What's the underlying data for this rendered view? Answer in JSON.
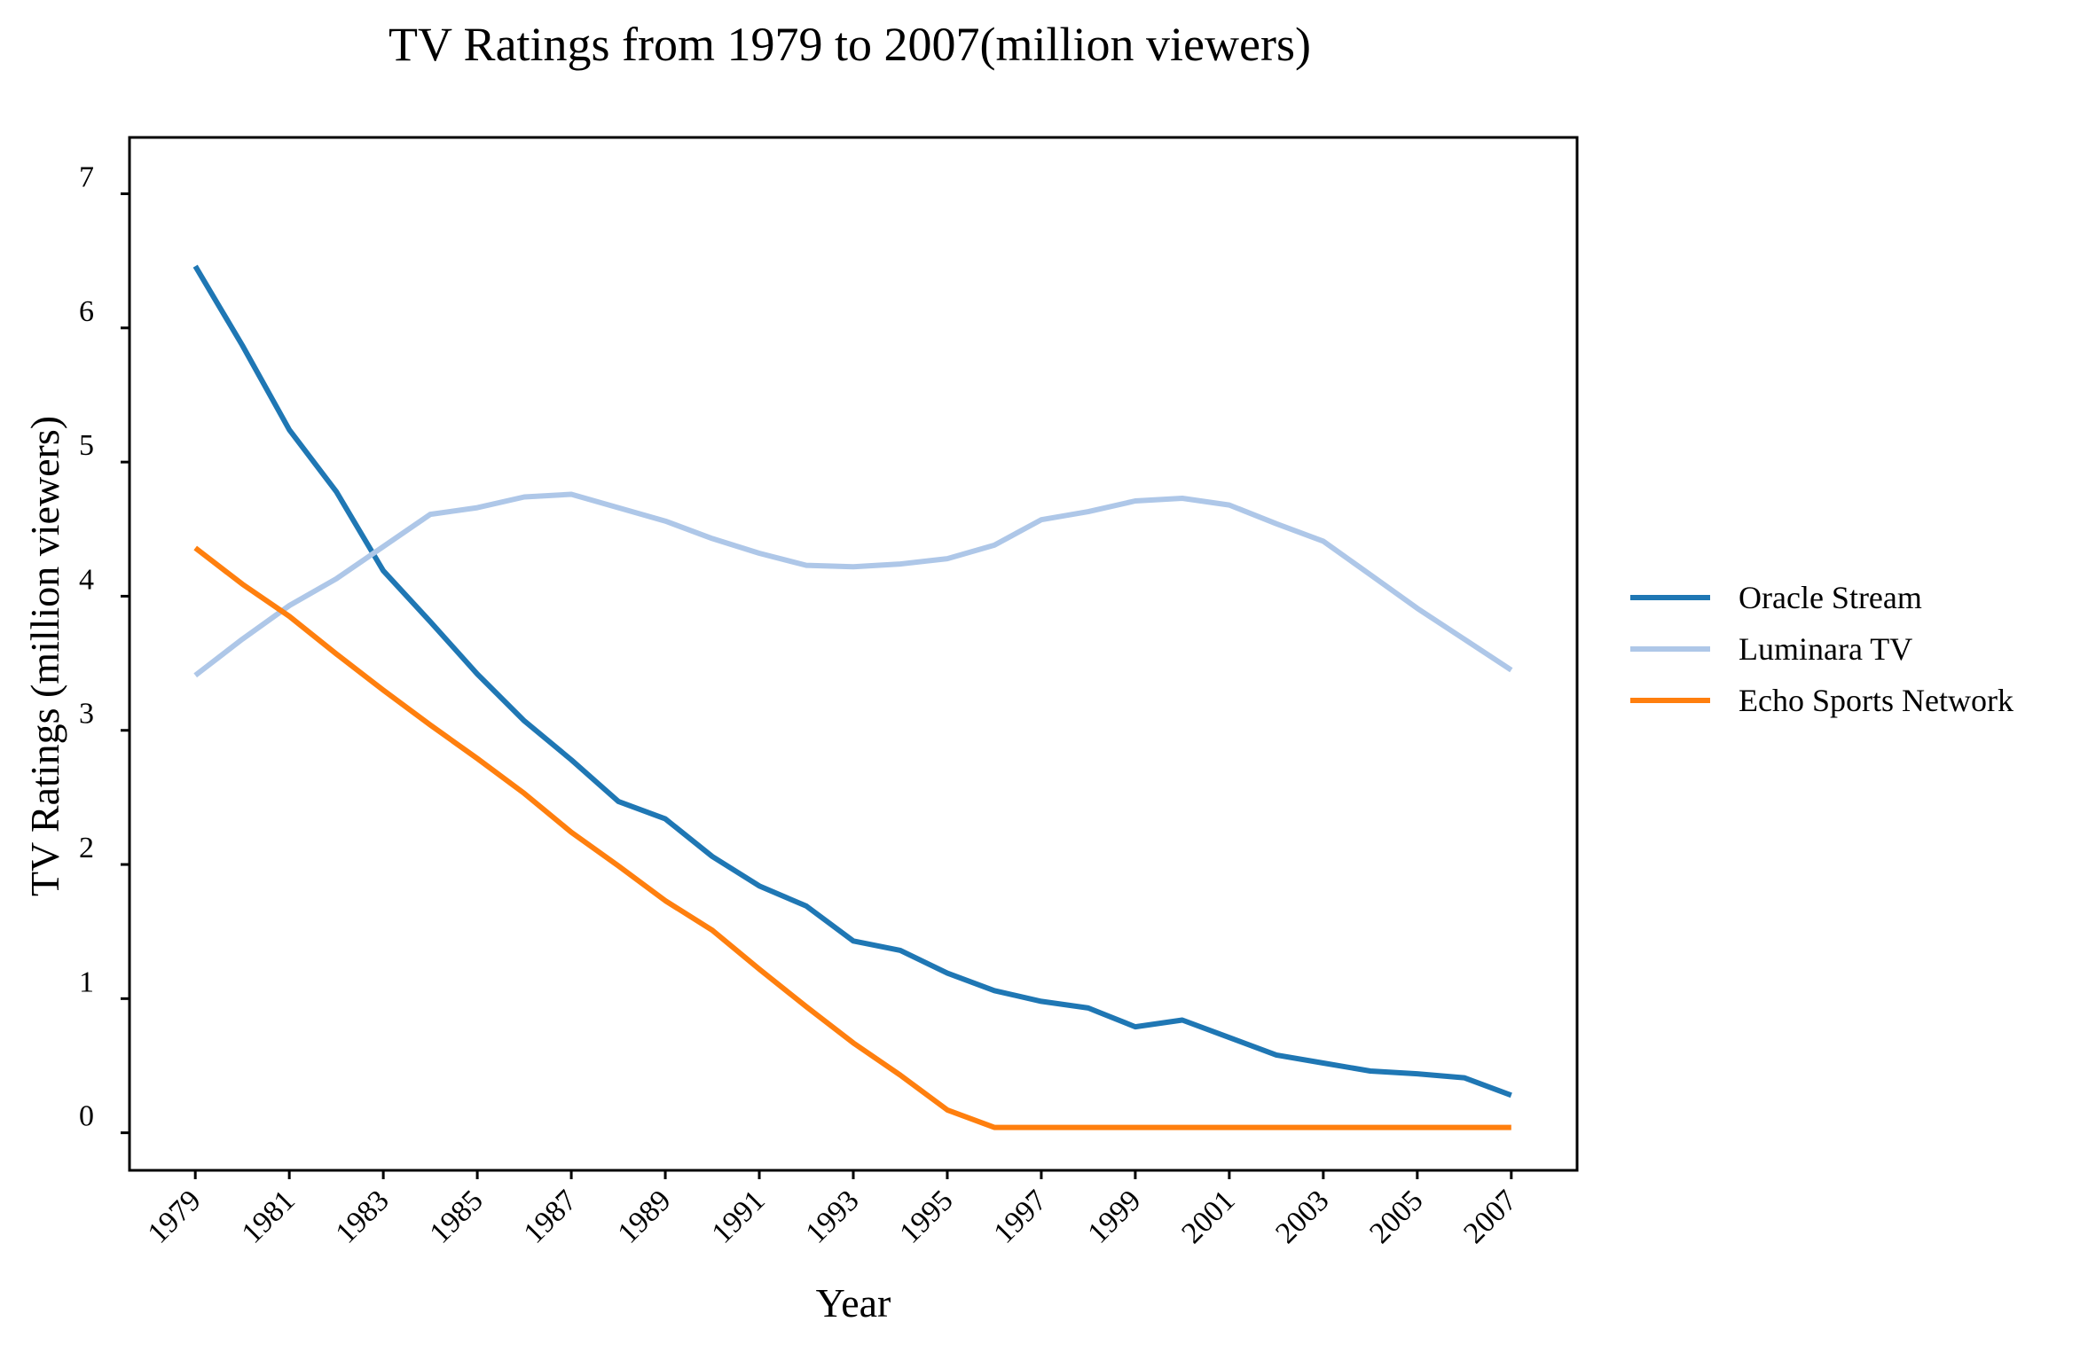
{
  "chart_data": {
    "type": "line",
    "title": "TV Ratings from 1979 to 2007(million viewers)",
    "xlabel": "Year",
    "ylabel": "TV Ratings (million viewers)",
    "x": [
      1979,
      1980,
      1981,
      1982,
      1983,
      1984,
      1985,
      1986,
      1987,
      1988,
      1989,
      1990,
      1991,
      1992,
      1993,
      1994,
      1995,
      1996,
      1997,
      1998,
      1999,
      2000,
      2001,
      2002,
      2003,
      2004,
      2005,
      2006,
      2007
    ],
    "x_ticks": [
      "1979",
      "1981",
      "1983",
      "1985",
      "1987",
      "1989",
      "1991",
      "1993",
      "1995",
      "1997",
      "1999",
      "2001",
      "2003",
      "2005",
      "2007"
    ],
    "y_ticks": [
      "0",
      "1",
      "2",
      "3",
      "4",
      "5",
      "6",
      "7"
    ],
    "xlim": [
      1977.6,
      2008.4
    ],
    "ylim": [
      -0.28,
      7.42
    ],
    "grid": false,
    "legend_position": "right",
    "series": [
      {
        "name": "Oracle Stream",
        "color": "#1f77b4",
        "values": [
          6.46,
          5.87,
          5.24,
          4.78,
          4.19,
          3.81,
          3.42,
          3.07,
          2.78,
          2.47,
          2.34,
          2.06,
          1.84,
          1.69,
          1.43,
          1.36,
          1.19,
          1.06,
          0.98,
          0.93,
          0.79,
          0.84,
          0.71,
          0.58,
          0.52,
          0.46,
          0.44,
          0.41,
          0.28
        ]
      },
      {
        "name": "Luminara TV",
        "color": "#aec7e8",
        "values": [
          3.41,
          3.68,
          3.93,
          4.13,
          4.37,
          4.61,
          4.66,
          4.74,
          4.76,
          4.66,
          4.56,
          4.43,
          4.32,
          4.23,
          4.22,
          4.24,
          4.28,
          4.38,
          4.57,
          4.63,
          4.71,
          4.73,
          4.68,
          4.54,
          4.41,
          4.16,
          3.91,
          3.68,
          3.45
        ]
      },
      {
        "name": "Echo Sports Network",
        "color": "#ff7f0e",
        "values": [
          4.36,
          4.09,
          3.85,
          3.57,
          3.3,
          3.04,
          2.79,
          2.53,
          2.24,
          1.99,
          1.73,
          1.51,
          1.22,
          0.94,
          0.67,
          0.43,
          0.17,
          0.04,
          0.04,
          0.04,
          0.04,
          0.04,
          0.04,
          0.04,
          0.04,
          0.04,
          0.04,
          0.04,
          0.04
        ]
      }
    ]
  }
}
